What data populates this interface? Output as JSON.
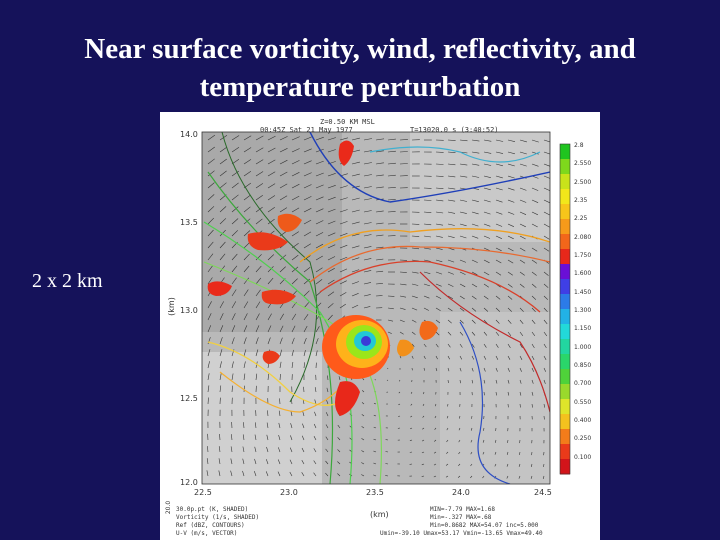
{
  "slide": {
    "title_line1": "Near surface vorticity, wind, reflectivity, and",
    "title_line2": "temperature perturbation",
    "side_label": "2 x 2 km"
  },
  "figure": {
    "header": {
      "line1": "Z=0.50 KM MSL",
      "line2": "00:45Z Sat 21 May 1977",
      "line3": "T=13020.0 s (3:40:52)"
    },
    "x_ticks": [
      "22.5",
      "23.0",
      "23.5",
      "24.0",
      "24.5"
    ],
    "y_ticks": [
      "14.0",
      "13.5",
      "13.0",
      "12.5",
      "12.0"
    ],
    "y_axis_label": "(km)",
    "x_axis_label": "(km)",
    "colorbar_labels": [
      "2.8",
      "2.550",
      "2.500",
      "2.35",
      "2.25",
      "2.080",
      "1.750",
      "1.600",
      "1.450",
      "1.300",
      "1.150",
      "1.000",
      "0.850",
      "0.700",
      "0.550",
      "0.400",
      "0.250",
      "0.100"
    ],
    "colorbar_colors": [
      "#1fc41f",
      "#7ed81c",
      "#c9e31a",
      "#f2e71a",
      "#f7c51a",
      "#f69a1a",
      "#f2661a",
      "#e8281a",
      "#6a0fd6",
      "#3f3fe6",
      "#2c7be8",
      "#22b2e6",
      "#22d9d9",
      "#22d6a0",
      "#2ad66a",
      "#4fd23a",
      "#9ad92c",
      "#dfe52a",
      "#f4c21e",
      "#f37c1a",
      "#ea3a1a",
      "#d2141a"
    ],
    "footer_left": {
      "line1": "30.0p.pt (K, SHADED)",
      "line2": "Vorticity (1/s, SHADED)",
      "line3": "Ref (dBZ, CONTOURS)",
      "line4": "U-V (m/s, VECTOR)"
    },
    "footer_right": {
      "line1": "MIN=-7.79 MAX=1.68",
      "line2": "Min=-.327 MAX=.68",
      "line3": "Min=0.8682 MAX=54.07 inc=5.000",
      "line4": "Umin=-39.10 Umax=53.17 Vmin=-13.65 Vmax=49.40"
    },
    "x_axis_small": "20.0"
  }
}
